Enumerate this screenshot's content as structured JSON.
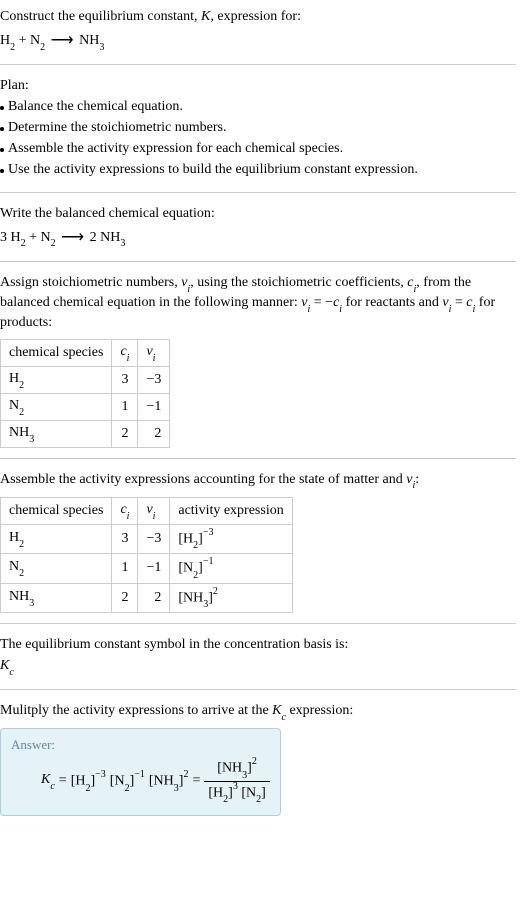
{
  "intro": {
    "line1_pre": "Construct the equilibrium constant, ",
    "line1_K": "K",
    "line1_post": ", expression for:",
    "eq_h2": "H",
    "eq_h2_sub": "2",
    "eq_plus": " + ",
    "eq_n2": "N",
    "eq_n2_sub": "2",
    "eq_arrow": "⟶",
    "eq_nh3": " NH",
    "eq_nh3_sub": "3"
  },
  "plan": {
    "title": "Plan:",
    "b1": "Balance the chemical equation.",
    "b2": "Determine the stoichiometric numbers.",
    "b3": "Assemble the activity expression for each chemical species.",
    "b4": "Use the activity expressions to build the equilibrium constant expression."
  },
  "balanced": {
    "title": "Write the balanced chemical equation:",
    "c1": "3 H",
    "c1s": "2",
    "plus": " + ",
    "c2": "N",
    "c2s": "2",
    "arrow": "⟶",
    "c3": " 2 NH",
    "c3s": "3"
  },
  "assign": {
    "text1": "Assign stoichiometric numbers, ",
    "nu": "ν",
    "i": "i",
    "text2": ", using the stoichiometric coefficients, ",
    "c": "c",
    "text3": ", from the balanced chemical equation in the following manner: ",
    "eq_react_lhs": "ν",
    "eq_react_eq": " = −",
    "eq_react_rhs": "c",
    "mid1": " for reactants and ",
    "eq_prod_eq": " = ",
    "mid2": " for products:",
    "table": {
      "h1": "chemical species",
      "h2_c": "c",
      "h2_i": "i",
      "h3_nu": "ν",
      "h3_i": "i",
      "rows": [
        {
          "sp": "H",
          "sub": "2",
          "c": "3",
          "nu": "−3"
        },
        {
          "sp": "N",
          "sub": "2",
          "c": "1",
          "nu": "−1"
        },
        {
          "sp": "NH",
          "sub": "3",
          "c": "2",
          "nu": "2"
        }
      ]
    }
  },
  "activity": {
    "text1": "Assemble the activity expressions accounting for the state of matter and ",
    "nu": "ν",
    "i": "i",
    "text2": ":",
    "table": {
      "h1": "chemical species",
      "h2_c": "c",
      "h2_i": "i",
      "h3_nu": "ν",
      "h3_i": "i",
      "h4": "activity expression",
      "rows": [
        {
          "sp": "H",
          "sub": "2",
          "c": "3",
          "nu": "−3",
          "act_sp": "[H",
          "act_sub": "2",
          "act_close": "]",
          "act_pow": "−3"
        },
        {
          "sp": "N",
          "sub": "2",
          "c": "1",
          "nu": "−1",
          "act_sp": "[N",
          "act_sub": "2",
          "act_close": "]",
          "act_pow": "−1"
        },
        {
          "sp": "NH",
          "sub": "3",
          "c": "2",
          "nu": "2",
          "act_sp": "[NH",
          "act_sub": "3",
          "act_close": "]",
          "act_pow": "2"
        }
      ]
    }
  },
  "symbol": {
    "line1": "The equilibrium constant symbol in the concentration basis is:",
    "K": "K",
    "c": "c"
  },
  "final": {
    "title_pre": "Mulitply the activity expressions to arrive at the ",
    "K": "K",
    "c": "c",
    "title_post": " expression:",
    "answer_label": "Answer:",
    "Kc_K": "K",
    "Kc_c": "c",
    "eq": " = ",
    "t1_o": "[H",
    "t1_s": "2",
    "t1_c": "]",
    "t1_p": "−3",
    "t2_o": " [N",
    "t2_s": "2",
    "t2_c": "]",
    "t2_p": "−1",
    "t3_o": " [NH",
    "t3_s": "3",
    "t3_c": "]",
    "t3_p": "2",
    "eq2": " = ",
    "num_o": "[NH",
    "num_s": "3",
    "num_c": "]",
    "num_p": "2",
    "den1_o": "[H",
    "den1_s": "2",
    "den1_c": "]",
    "den1_p": "3",
    "den2_o": " [N",
    "den2_s": "2",
    "den2_c": "]"
  }
}
